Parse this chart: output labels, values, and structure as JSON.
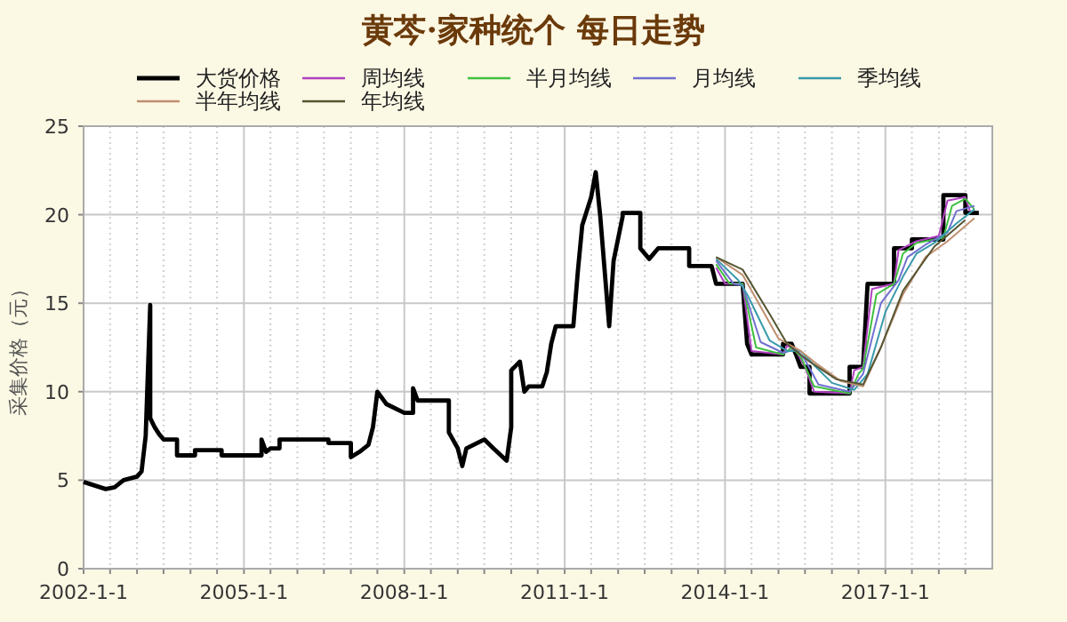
{
  "chart_data": {
    "type": "line",
    "title": "黄芩·家种统个 每日走势",
    "ylabel": "采集价格（元）",
    "legend": "top",
    "grid": true,
    "line_style": "solid",
    "marker": "none",
    "xlim": [
      "2002-01-01",
      "2019-01-01"
    ],
    "xticks": [
      {
        "value": "2002-01-01",
        "label": "2002-1-1"
      },
      {
        "value": "2002-07-01",
        "label": null
      },
      {
        "value": "2003-01-01",
        "label": null
      },
      {
        "value": "2003-07-01",
        "label": null
      },
      {
        "value": "2004-01-01",
        "label": null
      },
      {
        "value": "2004-07-01",
        "label": null
      },
      {
        "value": "2005-01-01",
        "label": "2005-1-1"
      },
      {
        "value": "2005-07-01",
        "label": null
      },
      {
        "value": "2006-01-01",
        "label": null
      },
      {
        "value": "2006-07-01",
        "label": null
      },
      {
        "value": "2007-01-01",
        "label": null
      },
      {
        "value": "2007-07-01",
        "label": null
      },
      {
        "value": "2008-01-01",
        "label": "2008-1-1"
      },
      {
        "value": "2008-07-01",
        "label": null
      },
      {
        "value": "2009-01-01",
        "label": null
      },
      {
        "value": "2009-07-01",
        "label": null
      },
      {
        "value": "2010-01-01",
        "label": null
      },
      {
        "value": "2010-07-01",
        "label": null
      },
      {
        "value": "2011-01-01",
        "label": "2011-1-1"
      },
      {
        "value": "2011-07-01",
        "label": null
      },
      {
        "value": "2012-01-01",
        "label": null
      },
      {
        "value": "2012-07-01",
        "label": null
      },
      {
        "value": "2013-01-01",
        "label": null
      },
      {
        "value": "2013-07-01",
        "label": null
      },
      {
        "value": "2014-01-01",
        "label": "2014-1-1"
      },
      {
        "value": "2014-07-01",
        "label": null
      },
      {
        "value": "2015-01-01",
        "label": null
      },
      {
        "value": "2015-07-01",
        "label": null
      },
      {
        "value": "2016-01-01",
        "label": null
      },
      {
        "value": "2016-07-01",
        "label": null
      },
      {
        "value": "2017-01-01",
        "label": "2017-1-1"
      },
      {
        "value": "2017-07-01",
        "label": null
      },
      {
        "value": "2018-01-01",
        "label": null
      },
      {
        "value": "2018-07-01",
        "label": null
      }
    ],
    "ylim": [
      0,
      25
    ],
    "yticks": [
      0,
      5,
      10,
      15,
      20,
      25
    ],
    "series": [
      {
        "name": "大货价格",
        "color": "#000000",
        "x": [
          "2002-01",
          "2002-06",
          "2002-08",
          "2002-10",
          "2003-01",
          "2003-02",
          "2003-03",
          "2003-04",
          "2003-04",
          "2003-05",
          "2003-06",
          "2003-07",
          "2003-10",
          "2003-10",
          "2004-02",
          "2004-02",
          "2004-08",
          "2004-08",
          "2005-05",
          "2005-05",
          "2005-06",
          "2005-07",
          "2005-09",
          "2005-09",
          "2006-08",
          "2006-08",
          "2007-01",
          "2007-01",
          "2007-03",
          "2007-05",
          "2007-06",
          "2007-07",
          "2007-09",
          "2008-01",
          "2008-03",
          "2008-03",
          "2008-04",
          "2008-11",
          "2008-11",
          "2009-01",
          "2009-02",
          "2009-03",
          "2009-07",
          "2009-09",
          "2009-12",
          "2010-01",
          "2010-01",
          "2010-03",
          "2010-04",
          "2010-05",
          "2010-08",
          "2010-09",
          "2010-10",
          "2010-11",
          "2011-03",
          "2011-04",
          "2011-05",
          "2011-07",
          "2011-08",
          "2011-09",
          "2011-11",
          "2011-12",
          "2012-02",
          "2012-02",
          "2012-06",
          "2012-06",
          "2012-08",
          "2012-10",
          "2013-05",
          "2013-05",
          "2013-10",
          "2013-11",
          "2014-05",
          "2014-06",
          "2014-07",
          "2015-02",
          "2015-02",
          "2015-04",
          "2015-05",
          "2015-06",
          "2015-08",
          "2015-08",
          "2016-05",
          "2016-05",
          "2016-08",
          "2016-09",
          "2017-03",
          "2017-03",
          "2017-07",
          "2017-07",
          "2018-02",
          "2018-02",
          "2018-07",
          "2018-07",
          "2018-10"
        ],
        "values": [
          4.9,
          4.5,
          4.6,
          5.0,
          5.2,
          5.5,
          7.5,
          14.9,
          8.5,
          8.0,
          7.6,
          7.3,
          7.3,
          6.4,
          6.4,
          6.7,
          6.7,
          6.4,
          6.4,
          7.3,
          6.6,
          6.8,
          6.8,
          7.3,
          7.3,
          7.1,
          7.1,
          6.3,
          6.6,
          7.0,
          8.0,
          10.0,
          9.3,
          8.8,
          8.8,
          10.2,
          9.5,
          9.5,
          7.7,
          6.8,
          5.8,
          6.8,
          7.3,
          6.8,
          6.1,
          8.0,
          11.2,
          11.7,
          10.0,
          10.3,
          10.3,
          11.1,
          12.7,
          13.7,
          13.7,
          16.8,
          19.4,
          21.0,
          22.4,
          19.9,
          13.7,
          17.4,
          19.9,
          20.1,
          20.1,
          18.1,
          17.5,
          18.1,
          18.1,
          17.1,
          17.1,
          16.1,
          16.1,
          12.7,
          12.1,
          12.1,
          12.7,
          12.7,
          12.1,
          11.4,
          11.4,
          9.9,
          9.9,
          11.4,
          11.4,
          16.1,
          16.1,
          18.1,
          18.1,
          18.6,
          18.6,
          21.1,
          21.1,
          20.1,
          20.1
        ]
      },
      {
        "name": "周均线",
        "color": "#b040c0",
        "x": [
          "2013-11",
          "2014-01",
          "2014-05",
          "2014-07",
          "2015-02",
          "2015-03",
          "2015-05",
          "2015-07",
          "2015-09",
          "2016-05",
          "2016-06",
          "2016-08",
          "2016-10",
          "2017-03",
          "2017-04",
          "2017-08",
          "2018-01",
          "2018-03",
          "2018-07",
          "2018-08"
        ],
        "values": [
          17.0,
          16.1,
          16.1,
          12.3,
          12.1,
          12.6,
          12.3,
          11.4,
          10.0,
          9.9,
          11.2,
          11.4,
          15.8,
          16.1,
          18.0,
          18.5,
          18.8,
          20.8,
          21.0,
          20.2
        ]
      },
      {
        "name": "半月均线",
        "color": "#40c040",
        "x": [
          "2013-11",
          "2014-02",
          "2014-05",
          "2014-08",
          "2015-02",
          "2015-04",
          "2015-06",
          "2015-09",
          "2016-05",
          "2016-07",
          "2016-08",
          "2016-11",
          "2017-03",
          "2017-05",
          "2017-08",
          "2018-02",
          "2018-04",
          "2018-07",
          "2018-09"
        ],
        "values": [
          17.2,
          16.1,
          16.1,
          12.5,
          12.1,
          12.5,
          12.0,
          10.3,
          9.9,
          11.0,
          11.3,
          15.5,
          16.1,
          17.8,
          18.4,
          18.7,
          20.5,
          20.9,
          20.3
        ]
      },
      {
        "name": "月均线",
        "color": "#7070d0",
        "x": [
          "2013-11",
          "2014-03",
          "2014-05",
          "2014-09",
          "2015-02",
          "2015-05",
          "2015-07",
          "2015-10",
          "2016-05",
          "2016-08",
          "2016-12",
          "2017-04",
          "2017-06",
          "2017-10",
          "2018-03",
          "2018-05",
          "2018-09"
        ],
        "values": [
          17.4,
          16.1,
          16.0,
          12.8,
          12.2,
          12.4,
          11.8,
          10.4,
          10.0,
          11.0,
          15.0,
          16.3,
          17.6,
          18.3,
          19.0,
          20.2,
          20.5
        ]
      },
      {
        "name": "季均线",
        "color": "#3a9aaa",
        "x": [
          "2013-11",
          "2014-04",
          "2014-06",
          "2014-11",
          "2015-03",
          "2015-06",
          "2015-09",
          "2016-01",
          "2016-06",
          "2016-09",
          "2017-01",
          "2017-05",
          "2017-08",
          "2017-12",
          "2018-05",
          "2018-09"
        ],
        "values": [
          17.5,
          16.3,
          15.5,
          12.9,
          12.3,
          12.3,
          11.5,
          10.5,
          10.1,
          11.0,
          14.5,
          16.5,
          17.8,
          18.4,
          19.5,
          20.3
        ]
      },
      {
        "name": "半年均线",
        "color": "#c09070",
        "x": [
          "2013-11",
          "2014-05",
          "2014-09",
          "2015-01",
          "2015-06",
          "2015-10",
          "2016-03",
          "2016-08",
          "2016-12",
          "2017-05",
          "2017-10",
          "2018-03",
          "2018-09"
        ],
        "values": [
          17.6,
          16.6,
          14.8,
          13.0,
          12.3,
          11.5,
          10.6,
          10.3,
          12.5,
          15.5,
          17.6,
          18.5,
          19.8
        ]
      },
      {
        "name": "年均线",
        "color": "#555533",
        "x": [
          "2013-11",
          "2014-05",
          "2014-11",
          "2015-03",
          "2015-08",
          "2016-02",
          "2016-08",
          "2016-12",
          "2017-05",
          "2017-12",
          "2018-07"
        ],
        "values": [
          17.6,
          16.9,
          14.4,
          12.7,
          11.7,
          10.7,
          10.4,
          12.5,
          15.7,
          18.2,
          19.7
        ]
      }
    ]
  }
}
